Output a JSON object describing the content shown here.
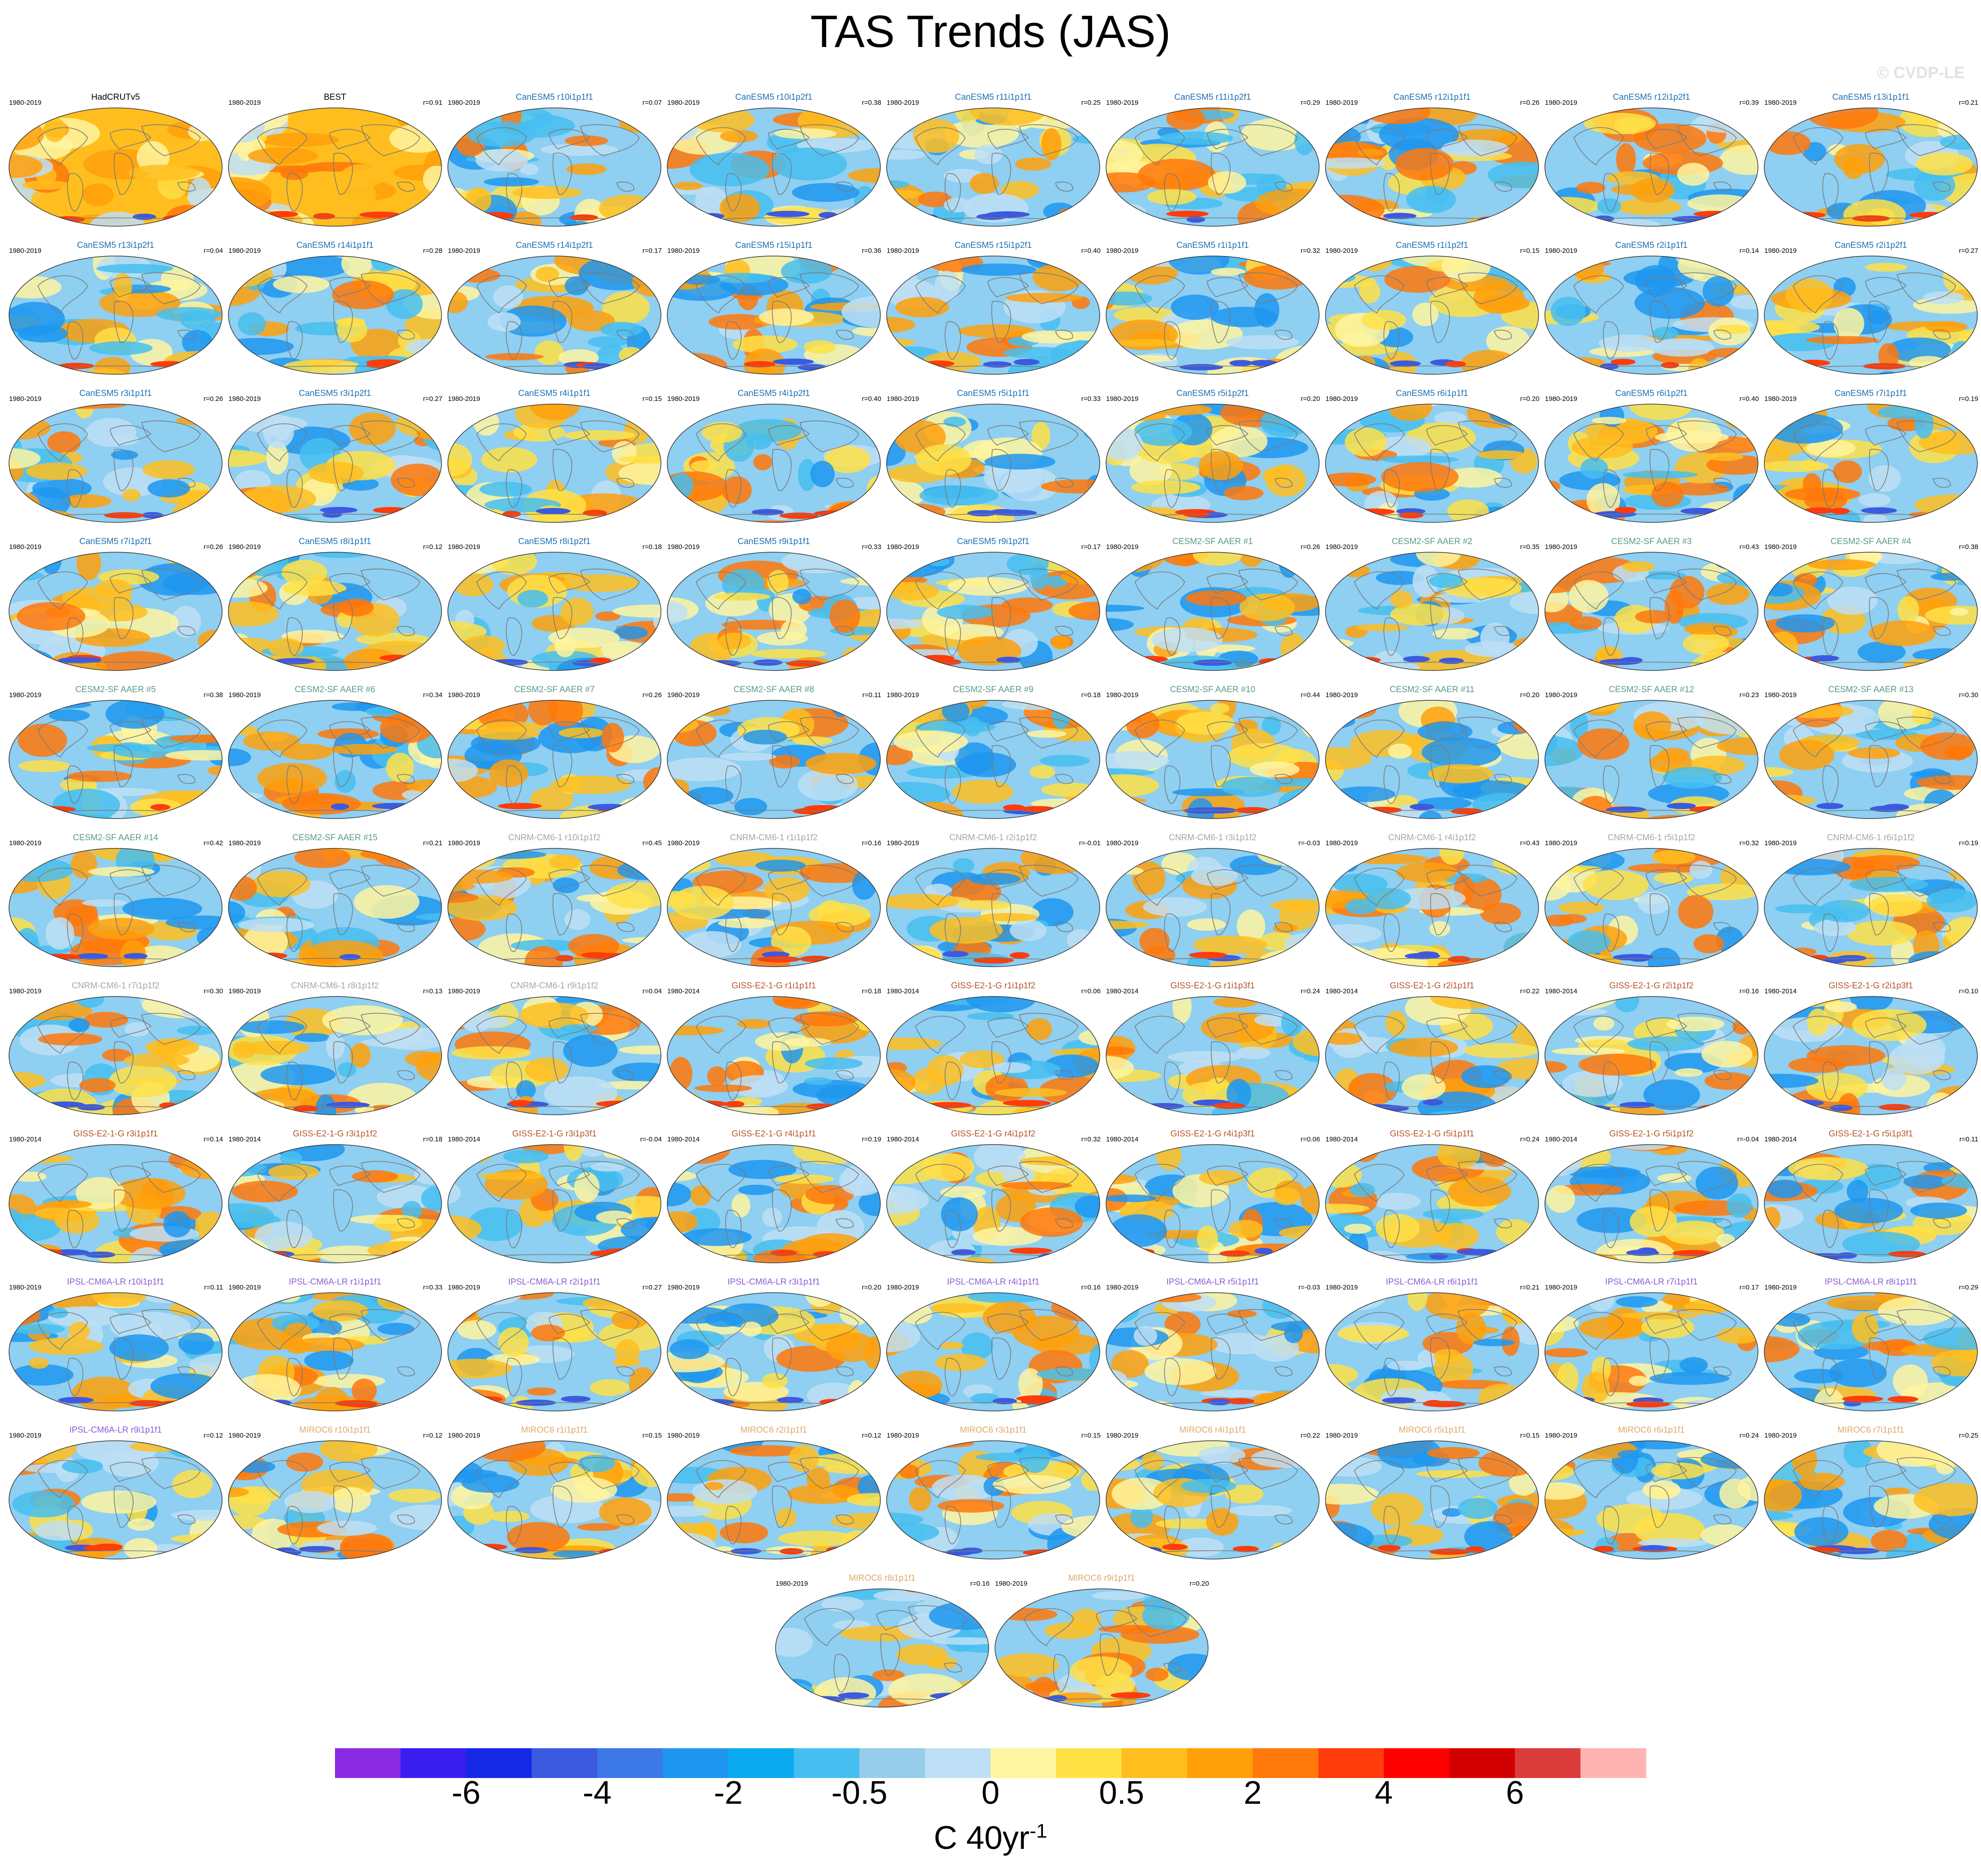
{
  "chart_data": {
    "type": "panel-maps",
    "title": "TAS Trends (JAS)",
    "copyright": "© CVDP-LE",
    "colorbar": {
      "unit": "C 40yr",
      "unit_exponent": "-1",
      "tick_labels": [
        "-6",
        "-4",
        "-2",
        "-0.5",
        "0",
        "0.5",
        "2",
        "4",
        "6"
      ],
      "colors": [
        "#8a2be2",
        "#3a1ef0",
        "#1428e6",
        "#3c5ae0",
        "#3c78e6",
        "#1e96f0",
        "#0aaaf0",
        "#46bef0",
        "#96cdeb",
        "#bedff5",
        "#fff5a0",
        "#ffe146",
        "#ffbe1e",
        "#ffa00a",
        "#ff780a",
        "#ff3c0a",
        "#ff0000",
        "#d20000",
        "#dc3c3c",
        "#ffb4b4"
      ]
    },
    "panels": [
      {
        "name": "HadCRUTv5",
        "period": "1980-2019",
        "r": "",
        "group": "obs"
      },
      {
        "name": "BEST",
        "period": "1980-2019",
        "r": "r=0.91",
        "group": "obs"
      },
      {
        "name": "CanESM5 r10i1p1f1",
        "period": "1980-2019",
        "r": "r=0.07",
        "group": "canesm"
      },
      {
        "name": "CanESM5 r10i1p2f1",
        "period": "1980-2019",
        "r": "r=0.38",
        "group": "canesm"
      },
      {
        "name": "CanESM5 r11i1p1f1",
        "period": "1980-2019",
        "r": "r=0.25",
        "group": "canesm"
      },
      {
        "name": "CanESM5 r11i1p2f1",
        "period": "1980-2019",
        "r": "r=0.29",
        "group": "canesm"
      },
      {
        "name": "CanESM5 r12i1p1f1",
        "period": "1980-2019",
        "r": "r=0.26",
        "group": "canesm"
      },
      {
        "name": "CanESM5 r12i1p2f1",
        "period": "1980-2019",
        "r": "r=0.39",
        "group": "canesm"
      },
      {
        "name": "CanESM5 r13i1p1f1",
        "period": "1980-2019",
        "r": "r=0.21",
        "group": "canesm"
      },
      {
        "name": "CanESM5 r13i1p2f1",
        "period": "1980-2019",
        "r": "r=0.04",
        "group": "canesm"
      },
      {
        "name": "CanESM5 r14i1p1f1",
        "period": "1980-2019",
        "r": "r=0.28",
        "group": "canesm"
      },
      {
        "name": "CanESM5 r14i1p2f1",
        "period": "1980-2019",
        "r": "r=0.17",
        "group": "canesm"
      },
      {
        "name": "CanESM5 r15i1p1f1",
        "period": "1980-2019",
        "r": "r=0.36",
        "group": "canesm"
      },
      {
        "name": "CanESM5 r15i1p2f1",
        "period": "1980-2019",
        "r": "r=0.40",
        "group": "canesm"
      },
      {
        "name": "CanESM5 r1i1p1f1",
        "period": "1980-2019",
        "r": "r=0.32",
        "group": "canesm"
      },
      {
        "name": "CanESM5 r1i1p2f1",
        "period": "1980-2019",
        "r": "r=0.15",
        "group": "canesm"
      },
      {
        "name": "CanESM5 r2i1p1f1",
        "period": "1980-2019",
        "r": "r=0.14",
        "group": "canesm"
      },
      {
        "name": "CanESM5 r2i1p2f1",
        "period": "1980-2019",
        "r": "r=0.27",
        "group": "canesm"
      },
      {
        "name": "CanESM5 r3i1p1f1",
        "period": "1980-2019",
        "r": "r=0.26",
        "group": "canesm"
      },
      {
        "name": "CanESM5 r3i1p2f1",
        "period": "1980-2019",
        "r": "r=0.27",
        "group": "canesm"
      },
      {
        "name": "CanESM5 r4i1p1f1",
        "period": "1980-2019",
        "r": "r=0.15",
        "group": "canesm"
      },
      {
        "name": "CanESM5 r4i1p2f1",
        "period": "1980-2019",
        "r": "r=0.40",
        "group": "canesm"
      },
      {
        "name": "CanESM5 r5i1p1f1",
        "period": "1980-2019",
        "r": "r=0.33",
        "group": "canesm"
      },
      {
        "name": "CanESM5 r5i1p2f1",
        "period": "1980-2019",
        "r": "r=0.20",
        "group": "canesm"
      },
      {
        "name": "CanESM5 r6i1p1f1",
        "period": "1980-2019",
        "r": "r=0.20",
        "group": "canesm"
      },
      {
        "name": "CanESM5 r6i1p2f1",
        "period": "1980-2019",
        "r": "r=0.40",
        "group": "canesm"
      },
      {
        "name": "CanESM5 r7i1p1f1",
        "period": "1980-2019",
        "r": "r=0.19",
        "group": "canesm"
      },
      {
        "name": "CanESM5 r7i1p2f1",
        "period": "1980-2019",
        "r": "r=0.26",
        "group": "canesm"
      },
      {
        "name": "CanESM5 r8i1p1f1",
        "period": "1980-2019",
        "r": "r=0.12",
        "group": "canesm"
      },
      {
        "name": "CanESM5 r8i1p2f1",
        "period": "1980-2019",
        "r": "r=0.18",
        "group": "canesm"
      },
      {
        "name": "CanESM5 r9i1p1f1",
        "period": "1980-2019",
        "r": "r=0.33",
        "group": "canesm"
      },
      {
        "name": "CanESM5 r9i1p2f1",
        "period": "1980-2019",
        "r": "r=0.17",
        "group": "canesm"
      },
      {
        "name": "CESM2-SF AAER #1",
        "period": "1980-2019",
        "r": "r=0.26",
        "group": "cesm"
      },
      {
        "name": "CESM2-SF AAER #2",
        "period": "1980-2019",
        "r": "r=0.35",
        "group": "cesm"
      },
      {
        "name": "CESM2-SF AAER #3",
        "period": "1980-2019",
        "r": "r=0.43",
        "group": "cesm"
      },
      {
        "name": "CESM2-SF AAER #4",
        "period": "1980-2019",
        "r": "r=0.38",
        "group": "cesm"
      },
      {
        "name": "CESM2-SF AAER #5",
        "period": "1980-2019",
        "r": "r=0.38",
        "group": "cesm"
      },
      {
        "name": "CESM2-SF AAER #6",
        "period": "1980-2019",
        "r": "r=0.34",
        "group": "cesm"
      },
      {
        "name": "CESM2-SF AAER #7",
        "period": "1980-2019",
        "r": "r=0.26",
        "group": "cesm"
      },
      {
        "name": "CESM2-SF AAER #8",
        "period": "1980-2019",
        "r": "r=0.11",
        "group": "cesm"
      },
      {
        "name": "CESM2-SF AAER #9",
        "period": "1980-2019",
        "r": "r=0.18",
        "group": "cesm"
      },
      {
        "name": "CESM2-SF AAER #10",
        "period": "1980-2019",
        "r": "r=0.44",
        "group": "cesm"
      },
      {
        "name": "CESM2-SF AAER #11",
        "period": "1980-2019",
        "r": "r=0.20",
        "group": "cesm"
      },
      {
        "name": "CESM2-SF AAER #12",
        "period": "1980-2019",
        "r": "r=0.23",
        "group": "cesm"
      },
      {
        "name": "CESM2-SF AAER #13",
        "period": "1980-2019",
        "r": "r=0.30",
        "group": "cesm"
      },
      {
        "name": "CESM2-SF AAER #14",
        "period": "1980-2019",
        "r": "r=0.42",
        "group": "cesm"
      },
      {
        "name": "CESM2-SF AAER #15",
        "period": "1980-2019",
        "r": "r=0.21",
        "group": "cesm"
      },
      {
        "name": "CNRM-CM6-1 r10i1p1f2",
        "period": "1980-2019",
        "r": "r=0.45",
        "group": "cnrm"
      },
      {
        "name": "CNRM-CM6-1 r1i1p1f2",
        "period": "1980-2019",
        "r": "r=0.16",
        "group": "cnrm"
      },
      {
        "name": "CNRM-CM6-1 r2i1p1f2",
        "period": "1980-2019",
        "r": "r=-0.01",
        "group": "cnrm"
      },
      {
        "name": "CNRM-CM6-1 r3i1p1f2",
        "period": "1980-2019",
        "r": "r=-0.03",
        "group": "cnrm"
      },
      {
        "name": "CNRM-CM6-1 r4i1p1f2",
        "period": "1980-2019",
        "r": "r=0.43",
        "group": "cnrm"
      },
      {
        "name": "CNRM-CM6-1 r5i1p1f2",
        "period": "1980-2019",
        "r": "r=0.32",
        "group": "cnrm"
      },
      {
        "name": "CNRM-CM6-1 r6i1p1f2",
        "period": "1980-2019",
        "r": "r=0.19",
        "group": "cnrm"
      },
      {
        "name": "CNRM-CM6-1 r7i1p1f2",
        "period": "1980-2019",
        "r": "r=0.30",
        "group": "cnrm"
      },
      {
        "name": "CNRM-CM6-1 r8i1p1f2",
        "period": "1980-2019",
        "r": "r=0.13",
        "group": "cnrm"
      },
      {
        "name": "CNRM-CM6-1 r9i1p1f2",
        "period": "1980-2019",
        "r": "r=0.04",
        "group": "cnrm"
      },
      {
        "name": "GISS-E2-1-G r1i1p1f1",
        "period": "1980-2014",
        "r": "r=0.18",
        "group": "giss"
      },
      {
        "name": "GISS-E2-1-G r1i1p1f2",
        "period": "1980-2014",
        "r": "r=0.06",
        "group": "giss"
      },
      {
        "name": "GISS-E2-1-G r1i1p3f1",
        "period": "1980-2014",
        "r": "r=0.24",
        "group": "giss"
      },
      {
        "name": "GISS-E2-1-G r2i1p1f1",
        "period": "1980-2014",
        "r": "r=0.22",
        "group": "giss"
      },
      {
        "name": "GISS-E2-1-G r2i1p1f2",
        "period": "1980-2014",
        "r": "r=0.16",
        "group": "giss"
      },
      {
        "name": "GISS-E2-1-G r2i1p3f1",
        "period": "1980-2014",
        "r": "r=0.10",
        "group": "giss"
      },
      {
        "name": "GISS-E2-1-G r3i1p1f1",
        "period": "1980-2014",
        "r": "r=0.14",
        "group": "giss"
      },
      {
        "name": "GISS-E2-1-G r3i1p1f2",
        "period": "1980-2014",
        "r": "r=0.18",
        "group": "giss"
      },
      {
        "name": "GISS-E2-1-G r3i1p3f1",
        "period": "1980-2014",
        "r": "r=-0.04",
        "group": "giss"
      },
      {
        "name": "GISS-E2-1-G r4i1p1f1",
        "period": "1980-2014",
        "r": "r=0.19",
        "group": "giss"
      },
      {
        "name": "GISS-E2-1-G r4i1p1f2",
        "period": "1980-2014",
        "r": "r=0.32",
        "group": "giss"
      },
      {
        "name": "GISS-E2-1-G r4i1p3f1",
        "period": "1980-2014",
        "r": "r=0.06",
        "group": "giss"
      },
      {
        "name": "GISS-E2-1-G r5i1p1f1",
        "period": "1980-2014",
        "r": "r=0.24",
        "group": "giss"
      },
      {
        "name": "GISS-E2-1-G r5i1p1f2",
        "period": "1980-2014",
        "r": "r=-0.04",
        "group": "giss"
      },
      {
        "name": "GISS-E2-1-G r5i1p3f1",
        "period": "1980-2014",
        "r": "r=0.11",
        "group": "giss"
      },
      {
        "name": "IPSL-CM6A-LR r10i1p1f1",
        "period": "1980-2019",
        "r": "r=0.11",
        "group": "ipsl"
      },
      {
        "name": "IPSL-CM6A-LR r1i1p1f1",
        "period": "1980-2019",
        "r": "r=0.33",
        "group": "ipsl"
      },
      {
        "name": "IPSL-CM6A-LR r2i1p1f1",
        "period": "1980-2019",
        "r": "r=0.27",
        "group": "ipsl"
      },
      {
        "name": "IPSL-CM6A-LR r3i1p1f1",
        "period": "1980-2019",
        "r": "r=0.20",
        "group": "ipsl"
      },
      {
        "name": "IPSL-CM6A-LR r4i1p1f1",
        "period": "1980-2019",
        "r": "r=0.16",
        "group": "ipsl"
      },
      {
        "name": "IPSL-CM6A-LR r5i1p1f1",
        "period": "1980-2019",
        "r": "r=-0.03",
        "group": "ipsl"
      },
      {
        "name": "IPSL-CM6A-LR r6i1p1f1",
        "period": "1980-2019",
        "r": "r=0.21",
        "group": "ipsl"
      },
      {
        "name": "IPSL-CM6A-LR r7i1p1f1",
        "period": "1980-2019",
        "r": "r=0.17",
        "group": "ipsl"
      },
      {
        "name": "IPSL-CM6A-LR r8i1p1f1",
        "period": "1980-2019",
        "r": "r=0.29",
        "group": "ipsl"
      },
      {
        "name": "IPSL-CM6A-LR r9i1p1f1",
        "period": "1980-2019",
        "r": "r=0.12",
        "group": "ipsl"
      },
      {
        "name": "MIROC6 r10i1p1f1",
        "period": "1980-2019",
        "r": "r=0.12",
        "group": "miroc"
      },
      {
        "name": "MIROC6 r1i1p1f1",
        "period": "1980-2019",
        "r": "r=0.15",
        "group": "miroc"
      },
      {
        "name": "MIROC6 r2i1p1f1",
        "period": "1980-2019",
        "r": "r=0.12",
        "group": "miroc"
      },
      {
        "name": "MIROC6 r3i1p1f1",
        "period": "1980-2019",
        "r": "r=0.15",
        "group": "miroc"
      },
      {
        "name": "MIROC6 r4i1p1f1",
        "period": "1980-2019",
        "r": "r=0.22",
        "group": "miroc"
      },
      {
        "name": "MIROC6 r5i1p1f1",
        "period": "1980-2019",
        "r": "r=0.15",
        "group": "miroc"
      },
      {
        "name": "MIROC6 r6i1p1f1",
        "period": "1980-2019",
        "r": "r=0.24",
        "group": "miroc"
      },
      {
        "name": "MIROC6 r7i1p1f1",
        "period": "1980-2019",
        "r": "r=0.25",
        "group": "miroc"
      },
      {
        "name": "MIROC6 r8i1p1f1",
        "period": "1980-2019",
        "r": "r=0.16",
        "group": "miroc"
      },
      {
        "name": "MIROC6 r9i1p1f1",
        "period": "1980-2019",
        "r": "r=0.20",
        "group": "miroc"
      }
    ],
    "group_colors": {
      "obs": "#000000",
      "canesm": "#1f6fb0",
      "cesm": "#5a9a8a",
      "cnrm": "#a6a6a6",
      "giss": "#b5562c",
      "ipsl": "#8b5cd6",
      "miroc": "#e0a86a"
    }
  }
}
